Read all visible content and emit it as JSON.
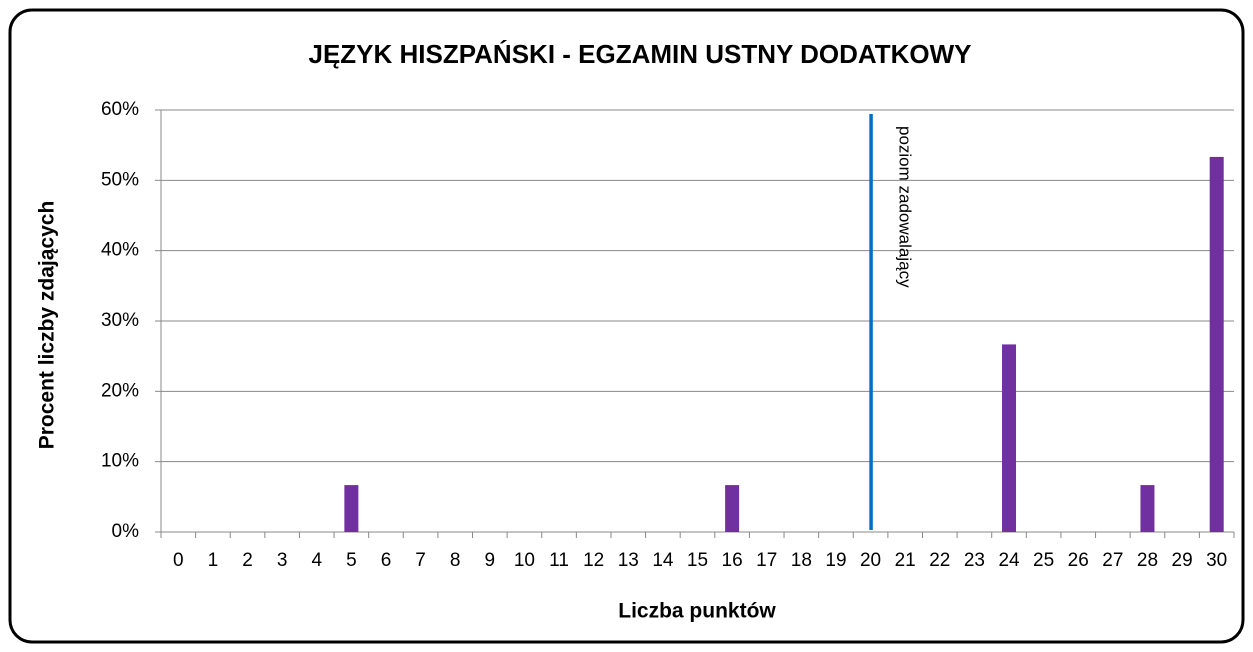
{
  "chart_data": {
    "type": "bar",
    "title": "JĘZYK  HISZPAŃSKI - EGZAMIN USTNY DODATKOWY",
    "x_label": "Liczba punktów",
    "y_label": "Procent liczby zdających",
    "categories": [
      "0",
      "1",
      "2",
      "3",
      "4",
      "5",
      "6",
      "7",
      "8",
      "9",
      "10",
      "11",
      "12",
      "13",
      "14",
      "15",
      "16",
      "17",
      "18",
      "19",
      "20",
      "21",
      "22",
      "23",
      "24",
      "25",
      "26",
      "27",
      "28",
      "29",
      "30"
    ],
    "values": [
      0,
      0,
      0,
      0,
      0,
      6.67,
      0,
      0,
      0,
      0,
      0,
      0,
      0,
      0,
      0,
      0,
      6.67,
      0,
      0,
      0,
      0,
      0,
      0,
      0,
      26.67,
      0,
      0,
      0,
      6.67,
      0,
      53.33
    ],
    "color": "#7030a0",
    "ylim": [
      0,
      60
    ],
    "yticks": [
      {
        "value": 0,
        "label": "0%"
      },
      {
        "value": 10,
        "label": "10%"
      },
      {
        "value": 20,
        "label": "20%"
      },
      {
        "value": 30,
        "label": "30%"
      },
      {
        "value": 40,
        "label": "40%"
      },
      {
        "value": 50,
        "label": "50%"
      },
      {
        "value": 60,
        "label": "60%"
      }
    ],
    "grid": true,
    "annotations": [
      {
        "text": "poziom zadowalający",
        "x": 20.5,
        "color": "#0070c0"
      }
    ]
  }
}
